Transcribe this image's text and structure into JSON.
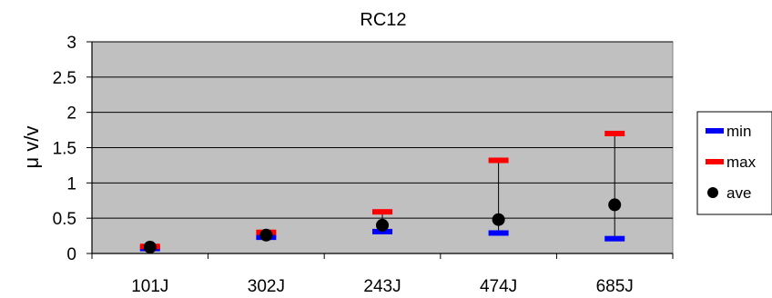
{
  "chart_data": {
    "type": "scatter",
    "title": "RC12",
    "xlabel": "",
    "ylabel": "μ v/v",
    "categories": [
      "101J",
      "302J",
      "243J",
      "474J",
      "685J"
    ],
    "ylim": [
      0,
      3
    ],
    "yticks": [
      "0",
      "0.5",
      "1",
      "1.5",
      "2",
      "2.5",
      "3"
    ],
    "grid": true,
    "legend_position": "right",
    "series": [
      {
        "name": "min",
        "color": "#0000ff",
        "marker": "dash",
        "values": [
          0.07,
          0.23,
          0.31,
          0.29,
          0.21
        ]
      },
      {
        "name": "max",
        "color": "#ff0000",
        "marker": "dash",
        "values": [
          0.1,
          0.3,
          0.59,
          1.32,
          1.7
        ]
      },
      {
        "name": "ave",
        "color": "#000000",
        "marker": "circle",
        "values": [
          0.09,
          0.26,
          0.4,
          0.48,
          0.69
        ]
      }
    ],
    "plot_background": "#c0c0c0"
  }
}
